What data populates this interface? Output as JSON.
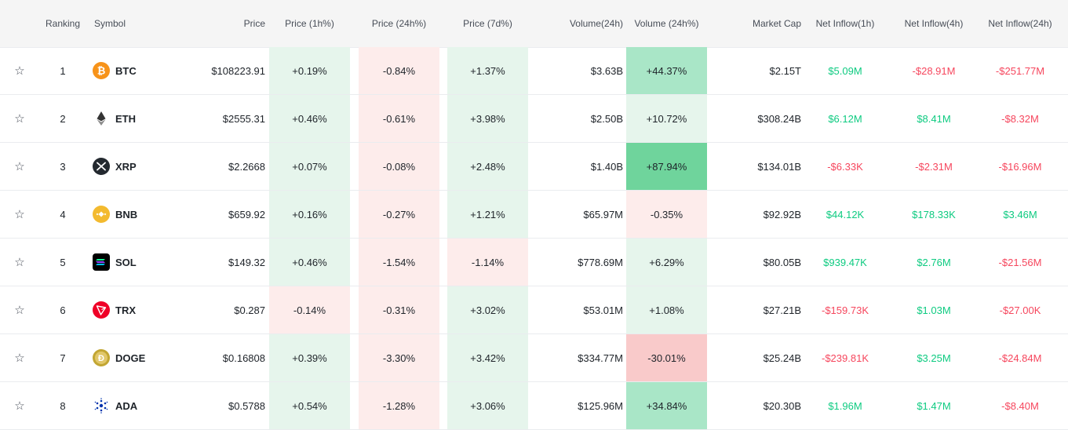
{
  "headers": {
    "ranking": "Ranking",
    "symbol": "Symbol",
    "price": "Price",
    "price_1h": "Price (1h%)",
    "price_24h": "Price (24h%)",
    "price_7d": "Price (7d%)",
    "volume_24h": "Volume(24h)",
    "volume_change_24h": "Volume (24h%)",
    "market_cap": "Market Cap",
    "inflow_1h": "Net Inflow(1h)",
    "inflow_4h": "Net Inflow(4h)",
    "inflow_24h": "Net Inflow(24h)"
  },
  "colors": {
    "green_light": "#e6f5ec",
    "green_mid": "#a9e6c7",
    "green_strong": "#6fd49c",
    "red_light": "#fdeceb",
    "red_mid": "#f9caca",
    "pos_text": "#0ecb81",
    "neg_text": "#f6465d",
    "header_bg": "#f5f5f5"
  },
  "rows": [
    {
      "rank": "1",
      "symbol": "BTC",
      "icon": "btc-icon",
      "price": "$108223.91",
      "p1h": "+0.19%",
      "p24h": "-0.84%",
      "p7d": "+1.37%",
      "vol": "$3.63B",
      "vol_chg": "+44.37%",
      "mcap": "$2.15T",
      "in1h": "$5.09M",
      "in4h": "-$28.91M",
      "in24h": "-$251.77M"
    },
    {
      "rank": "2",
      "symbol": "ETH",
      "icon": "eth-icon",
      "price": "$2555.31",
      "p1h": "+0.46%",
      "p24h": "-0.61%",
      "p7d": "+3.98%",
      "vol": "$2.50B",
      "vol_chg": "+10.72%",
      "mcap": "$308.24B",
      "in1h": "$6.12M",
      "in4h": "$8.41M",
      "in24h": "-$8.32M"
    },
    {
      "rank": "3",
      "symbol": "XRP",
      "icon": "xrp-icon",
      "price": "$2.2668",
      "p1h": "+0.07%",
      "p24h": "-0.08%",
      "p7d": "+2.48%",
      "vol": "$1.40B",
      "vol_chg": "+87.94%",
      "mcap": "$134.01B",
      "in1h": "-$6.33K",
      "in4h": "-$2.31M",
      "in24h": "-$16.96M"
    },
    {
      "rank": "4",
      "symbol": "BNB",
      "icon": "bnb-icon",
      "price": "$659.92",
      "p1h": "+0.16%",
      "p24h": "-0.27%",
      "p7d": "+1.21%",
      "vol": "$65.97M",
      "vol_chg": "-0.35%",
      "mcap": "$92.92B",
      "in1h": "$44.12K",
      "in4h": "$178.33K",
      "in24h": "$3.46M"
    },
    {
      "rank": "5",
      "symbol": "SOL",
      "icon": "sol-icon",
      "price": "$149.32",
      "p1h": "+0.46%",
      "p24h": "-1.54%",
      "p7d": "-1.14%",
      "vol": "$778.69M",
      "vol_chg": "+6.29%",
      "mcap": "$80.05B",
      "in1h": "$939.47K",
      "in4h": "$2.76M",
      "in24h": "-$21.56M"
    },
    {
      "rank": "6",
      "symbol": "TRX",
      "icon": "trx-icon",
      "price": "$0.287",
      "p1h": "-0.14%",
      "p24h": "-0.31%",
      "p7d": "+3.02%",
      "vol": "$53.01M",
      "vol_chg": "+1.08%",
      "mcap": "$27.21B",
      "in1h": "-$159.73K",
      "in4h": "$1.03M",
      "in24h": "-$27.00K"
    },
    {
      "rank": "7",
      "symbol": "DOGE",
      "icon": "doge-icon",
      "price": "$0.16808",
      "p1h": "+0.39%",
      "p24h": "-3.30%",
      "p7d": "+3.42%",
      "vol": "$334.77M",
      "vol_chg": "-30.01%",
      "mcap": "$25.24B",
      "in1h": "-$239.81K",
      "in4h": "$3.25M",
      "in24h": "-$24.84M"
    },
    {
      "rank": "8",
      "symbol": "ADA",
      "icon": "ada-icon",
      "price": "$0.5788",
      "p1h": "+0.54%",
      "p24h": "-1.28%",
      "p7d": "+3.06%",
      "vol": "$125.96M",
      "vol_chg": "+34.84%",
      "mcap": "$20.30B",
      "in1h": "$1.96M",
      "in4h": "$1.47M",
      "in24h": "-$8.40M"
    }
  ]
}
